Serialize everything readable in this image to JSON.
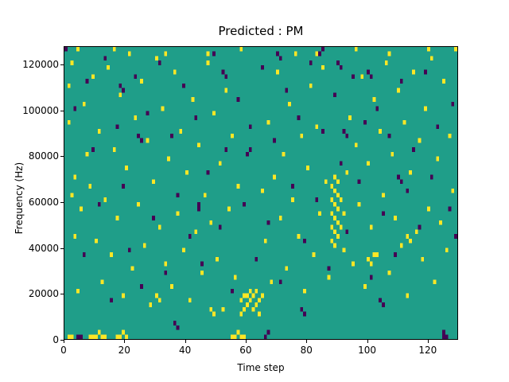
{
  "chart_data": {
    "type": "heatmap",
    "title": "Predicted : PM",
    "xlabel": "Time step",
    "ylabel": "Frequency (Hz)",
    "xlim": [
      0,
      130
    ],
    "ylim": [
      0,
      128000
    ],
    "x_ticks": [
      0,
      20,
      40,
      60,
      80,
      100,
      120
    ],
    "y_ticks": [
      0,
      20000,
      40000,
      60000,
      80000,
      100000,
      120000
    ],
    "grid": {
      "cols": 130,
      "rows": 64,
      "freq_step_hz": 2000
    },
    "colors": {
      "background": "#1f9e89",
      "high": "#fde725",
      "low": "#440154"
    },
    "legend": "none",
    "cells": {
      "yellow": [
        [
          1,
          0
        ],
        [
          2,
          0
        ],
        [
          8,
          0
        ],
        [
          9,
          0
        ],
        [
          10,
          0
        ],
        [
          11,
          1
        ],
        [
          12,
          0
        ],
        [
          13,
          0
        ],
        [
          17,
          0
        ],
        [
          18,
          0
        ],
        [
          19,
          1
        ],
        [
          20,
          0
        ],
        [
          55,
          0
        ],
        [
          56,
          0
        ],
        [
          57,
          1
        ],
        [
          58,
          0
        ],
        [
          59,
          0
        ],
        [
          1,
          55
        ],
        [
          1,
          47
        ],
        [
          2,
          60
        ],
        [
          2,
          31
        ],
        [
          3,
          22
        ],
        [
          3,
          35
        ],
        [
          4,
          10
        ],
        [
          5,
          28
        ],
        [
          6,
          51
        ],
        [
          7,
          40
        ],
        [
          8,
          33
        ],
        [
          9,
          57
        ],
        [
          10,
          21
        ],
        [
          11,
          45
        ],
        [
          12,
          12
        ],
        [
          13,
          30
        ],
        [
          14,
          59
        ],
        [
          15,
          18
        ],
        [
          16,
          41
        ],
        [
          17,
          26
        ],
        [
          18,
          53
        ],
        [
          19,
          9
        ],
        [
          20,
          37
        ],
        [
          21,
          62
        ],
        [
          22,
          15
        ],
        [
          23,
          48
        ],
        [
          24,
          29
        ],
        [
          25,
          56
        ],
        [
          26,
          20
        ],
        [
          27,
          43
        ],
        [
          28,
          7
        ],
        [
          29,
          34
        ],
        [
          30,
          61
        ],
        [
          31,
          24
        ],
        [
          32,
          50
        ],
        [
          33,
          16
        ],
        [
          34,
          39
        ],
        [
          35,
          11
        ],
        [
          36,
          58
        ],
        [
          37,
          27
        ],
        [
          38,
          45
        ],
        [
          39,
          19
        ],
        [
          40,
          36
        ],
        [
          41,
          8
        ],
        [
          42,
          52
        ],
        [
          43,
          23
        ],
        [
          44,
          42
        ],
        [
          45,
          14
        ],
        [
          46,
          31
        ],
        [
          47,
          60
        ],
        [
          48,
          25
        ],
        [
          49,
          49
        ],
        [
          50,
          17
        ],
        [
          51,
          38
        ],
        [
          52,
          6
        ],
        [
          53,
          54
        ],
        [
          54,
          28
        ],
        [
          55,
          44
        ],
        [
          56,
          13
        ],
        [
          57,
          33
        ],
        [
          58,
          5
        ],
        [
          58,
          8
        ],
        [
          59,
          9
        ],
        [
          59,
          6
        ],
        [
          60,
          7
        ],
        [
          60,
          9
        ],
        [
          61,
          8
        ],
        [
          61,
          10
        ],
        [
          62,
          6
        ],
        [
          62,
          9
        ],
        [
          63,
          7
        ],
        [
          63,
          10
        ],
        [
          64,
          8
        ],
        [
          64,
          5
        ],
        [
          65,
          9
        ],
        [
          65,
          32
        ],
        [
          66,
          21
        ],
        [
          67,
          47
        ],
        [
          68,
          12
        ],
        [
          69,
          35
        ],
        [
          70,
          58
        ],
        [
          71,
          26
        ],
        [
          72,
          40
        ],
        [
          73,
          15
        ],
        [
          74,
          51
        ],
        [
          75,
          30
        ],
        [
          76,
          62
        ],
        [
          77,
          22
        ],
        [
          78,
          44
        ],
        [
          79,
          10
        ],
        [
          80,
          37
        ],
        [
          81,
          55
        ],
        [
          82,
          18
        ],
        [
          83,
          46
        ],
        [
          84,
          27
        ],
        [
          85,
          59
        ],
        [
          86,
          34
        ],
        [
          87,
          13
        ],
        [
          88,
          21
        ],
        [
          88,
          24
        ],
        [
          88,
          27
        ],
        [
          88,
          30
        ],
        [
          88,
          33
        ],
        [
          89,
          20
        ],
        [
          89,
          23
        ],
        [
          89,
          26
        ],
        [
          89,
          29
        ],
        [
          89,
          32
        ],
        [
          89,
          35
        ],
        [
          90,
          22
        ],
        [
          90,
          25
        ],
        [
          90,
          28
        ],
        [
          90,
          31
        ],
        [
          90,
          34
        ],
        [
          91,
          24
        ],
        [
          91,
          30
        ],
        [
          92,
          19
        ],
        [
          92,
          27
        ],
        [
          93,
          36
        ],
        [
          94,
          48
        ],
        [
          95,
          16
        ],
        [
          96,
          42
        ],
        [
          97,
          29
        ],
        [
          98,
          57
        ],
        [
          99,
          11
        ],
        [
          100,
          38
        ],
        [
          101,
          24
        ],
        [
          102,
          52
        ],
        [
          103,
          18
        ],
        [
          104,
          45
        ],
        [
          105,
          31
        ],
        [
          106,
          60
        ],
        [
          107,
          14
        ],
        [
          108,
          40
        ],
        [
          109,
          26
        ],
        [
          110,
          54
        ],
        [
          111,
          20
        ],
        [
          112,
          47
        ],
        [
          113,
          9
        ],
        [
          114,
          36
        ],
        [
          115,
          58
        ],
        [
          116,
          23
        ],
        [
          117,
          43
        ],
        [
          118,
          17
        ],
        [
          119,
          50
        ],
        [
          120,
          28
        ],
        [
          121,
          61
        ],
        [
          122,
          12
        ],
        [
          123,
          39
        ],
        [
          124,
          25
        ],
        [
          125,
          56
        ],
        [
          126,
          19
        ],
        [
          127,
          44
        ],
        [
          128,
          32
        ],
        [
          129,
          63
        ],
        [
          4,
          63
        ],
        [
          16,
          63
        ],
        [
          33,
          62
        ],
        [
          47,
          62
        ],
        [
          58,
          63
        ],
        [
          83,
          62
        ],
        [
          96,
          63
        ],
        [
          107,
          62
        ],
        [
          120,
          63
        ],
        [
          100,
          17
        ],
        [
          101,
          16
        ],
        [
          102,
          18
        ],
        [
          113,
          22
        ],
        [
          114,
          21
        ],
        [
          48,
          6
        ],
        [
          49,
          5
        ],
        [
          30,
          9
        ],
        [
          31,
          8
        ]
      ],
      "dark": [
        [
          0,
          63
        ],
        [
          3,
          50
        ],
        [
          5,
          0
        ],
        [
          4,
          0
        ],
        [
          6,
          18
        ],
        [
          7,
          56
        ],
        [
          9,
          41
        ],
        [
          11,
          29
        ],
        [
          13,
          61
        ],
        [
          15,
          8
        ],
        [
          17,
          46
        ],
        [
          19,
          33
        ],
        [
          21,
          19
        ],
        [
          23,
          57
        ],
        [
          25,
          11
        ],
        [
          27,
          49
        ],
        [
          29,
          26
        ],
        [
          31,
          60
        ],
        [
          33,
          14
        ],
        [
          35,
          44
        ],
        [
          37,
          31
        ],
        [
          39,
          55
        ],
        [
          41,
          22
        ],
        [
          43,
          48
        ],
        [
          45,
          16
        ],
        [
          47,
          36
        ],
        [
          49,
          62
        ],
        [
          51,
          24
        ],
        [
          53,
          41
        ],
        [
          55,
          10
        ],
        [
          57,
          52
        ],
        [
          59,
          29
        ],
        [
          61,
          46
        ],
        [
          63,
          17
        ],
        [
          65,
          59
        ],
        [
          67,
          25
        ],
        [
          69,
          43
        ],
        [
          71,
          12
        ],
        [
          73,
          54
        ],
        [
          75,
          33
        ],
        [
          77,
          48
        ],
        [
          79,
          21
        ],
        [
          81,
          60
        ],
        [
          83,
          30
        ],
        [
          85,
          45
        ],
        [
          87,
          15
        ],
        [
          89,
          53
        ],
        [
          91,
          38
        ],
        [
          93,
          23
        ],
        [
          95,
          57
        ],
        [
          97,
          34
        ],
        [
          99,
          47
        ],
        [
          101,
          13
        ],
        [
          103,
          50
        ],
        [
          105,
          27
        ],
        [
          107,
          44
        ],
        [
          109,
          18
        ],
        [
          111,
          56
        ],
        [
          113,
          32
        ],
        [
          115,
          41
        ],
        [
          117,
          24
        ],
        [
          119,
          58
        ],
        [
          121,
          35
        ],
        [
          123,
          46
        ],
        [
          125,
          0
        ],
        [
          125,
          1
        ],
        [
          126,
          0
        ],
        [
          127,
          28
        ],
        [
          128,
          51
        ],
        [
          129,
          22
        ],
        [
          44,
          28
        ],
        [
          44,
          29
        ],
        [
          60,
          40
        ],
        [
          61,
          41
        ],
        [
          92,
          45
        ],
        [
          93,
          44
        ],
        [
          110,
          35
        ],
        [
          111,
          34
        ],
        [
          18,
          55
        ],
        [
          19,
          54
        ],
        [
          70,
          62
        ],
        [
          71,
          61
        ],
        [
          84,
          62
        ],
        [
          85,
          63
        ],
        [
          100,
          58
        ],
        [
          101,
          57
        ],
        [
          36,
          3
        ],
        [
          37,
          2
        ],
        [
          66,
          0
        ],
        [
          67,
          1
        ],
        [
          90,
          60
        ],
        [
          91,
          59
        ],
        [
          104,
          8
        ],
        [
          105,
          7
        ],
        [
          24,
          44
        ],
        [
          25,
          43
        ],
        [
          52,
          58
        ],
        [
          53,
          57
        ],
        [
          78,
          6
        ],
        [
          79,
          5
        ]
      ]
    }
  }
}
